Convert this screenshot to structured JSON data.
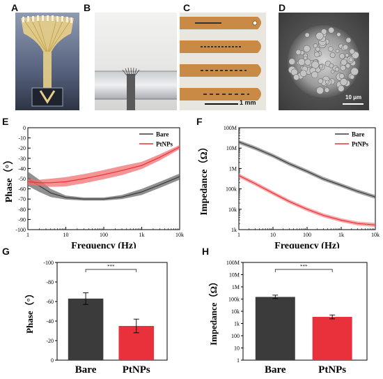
{
  "panels": {
    "A": "A",
    "B": "B",
    "C": "C",
    "D": "D",
    "E": "E",
    "F": "F",
    "G": "G",
    "H": "H"
  },
  "photos": {
    "C_scale": "1 mm",
    "D_scale": "10 μm"
  },
  "colors": {
    "bare": "#3b3b3b",
    "ptnps": "#e8313a",
    "bare_band": "#6b6b6b",
    "ptnps_band": "#f07070"
  },
  "chart_data": [
    {
      "id": "E",
      "type": "line",
      "xlabel": "Frequency (Hz)",
      "ylabel": "Phase（°）",
      "x_scale": "log",
      "xlim": [
        1,
        10000
      ],
      "ylim": [
        -100,
        0
      ],
      "xticks": [
        "1",
        "10",
        "100",
        "1k",
        "10k"
      ],
      "yticks": [
        "0",
        "-10",
        "-20",
        "-30",
        "-40",
        "-50",
        "-60",
        "-70",
        "-80",
        "-90",
        "-100"
      ],
      "legend": "top-right",
      "series": [
        {
          "name": "Bare",
          "x": [
            1,
            2,
            4,
            10,
            30,
            100,
            300,
            1000,
            3000,
            10000
          ],
          "y": [
            -50,
            -57,
            -64,
            -68.5,
            -70,
            -70,
            -68,
            -63,
            -56,
            -48
          ],
          "band": [
            7,
            6,
            4,
            2,
            1.5,
            1.5,
            2,
            3,
            3,
            3
          ]
        },
        {
          "name": "PtNPs",
          "x": [
            1,
            2,
            4,
            10,
            30,
            100,
            300,
            1000,
            3000,
            10000
          ],
          "y": [
            -53,
            -54,
            -54,
            -53,
            -50,
            -46,
            -42,
            -37,
            -29,
            -19
          ],
          "band": [
            3,
            3,
            4,
            4.5,
            4.5,
            4.5,
            4.5,
            3.5,
            3,
            2
          ]
        }
      ]
    },
    {
      "id": "F",
      "type": "line",
      "xlabel": "Frequency (Hz)",
      "ylabel": "Impedance（Ω）",
      "x_scale": "log",
      "y_scale": "log",
      "xlim": [
        1,
        10000
      ],
      "ylim": [
        1000,
        100000000
      ],
      "xticks": [
        "1",
        "10",
        "100",
        "1k",
        "10k"
      ],
      "yticks": [
        "1k",
        "10k",
        "100k",
        "1M",
        "10M",
        "100M"
      ],
      "legend": "top-right",
      "series": [
        {
          "name": "Bare",
          "x": [
            1,
            3,
            10,
            30,
            100,
            300,
            1000,
            3000,
            10000
          ],
          "y": [
            20000000,
            10000000,
            4200000,
            1700000,
            720000,
            310000,
            150000,
            76000,
            40000
          ]
        },
        {
          "name": "PtNPs",
          "x": [
            1,
            3,
            10,
            30,
            100,
            300,
            1000,
            3000,
            10000
          ],
          "y": [
            450000,
            180000,
            62000,
            24000,
            10000,
            5000,
            2900,
            2000,
            1700
          ]
        }
      ]
    },
    {
      "id": "G",
      "type": "bar",
      "categories": [
        "Bare",
        "PtNPs"
      ],
      "values": [
        -63,
        -35
      ],
      "errors": [
        6,
        7
      ],
      "ylabel": "Phase（°）",
      "ylim": [
        -100,
        0
      ],
      "yticks": [
        "-100",
        "-80",
        "-60",
        "-40",
        "-20",
        "0"
      ],
      "significance": "***"
    },
    {
      "id": "H",
      "type": "bar",
      "y_scale": "log",
      "categories": [
        "Bare",
        "PtNPs"
      ],
      "values": [
        150000,
        3500
      ],
      "errors_low": [
        110000,
        2400
      ],
      "errors_high": [
        210000,
        5000
      ],
      "ylabel": "Impedance（Ω）",
      "ylim": [
        1,
        100000000
      ],
      "yticks": [
        "1",
        "10",
        "100",
        "1k",
        "10k",
        "100k",
        "1M",
        "10M",
        "100M"
      ],
      "significance": "***"
    }
  ]
}
